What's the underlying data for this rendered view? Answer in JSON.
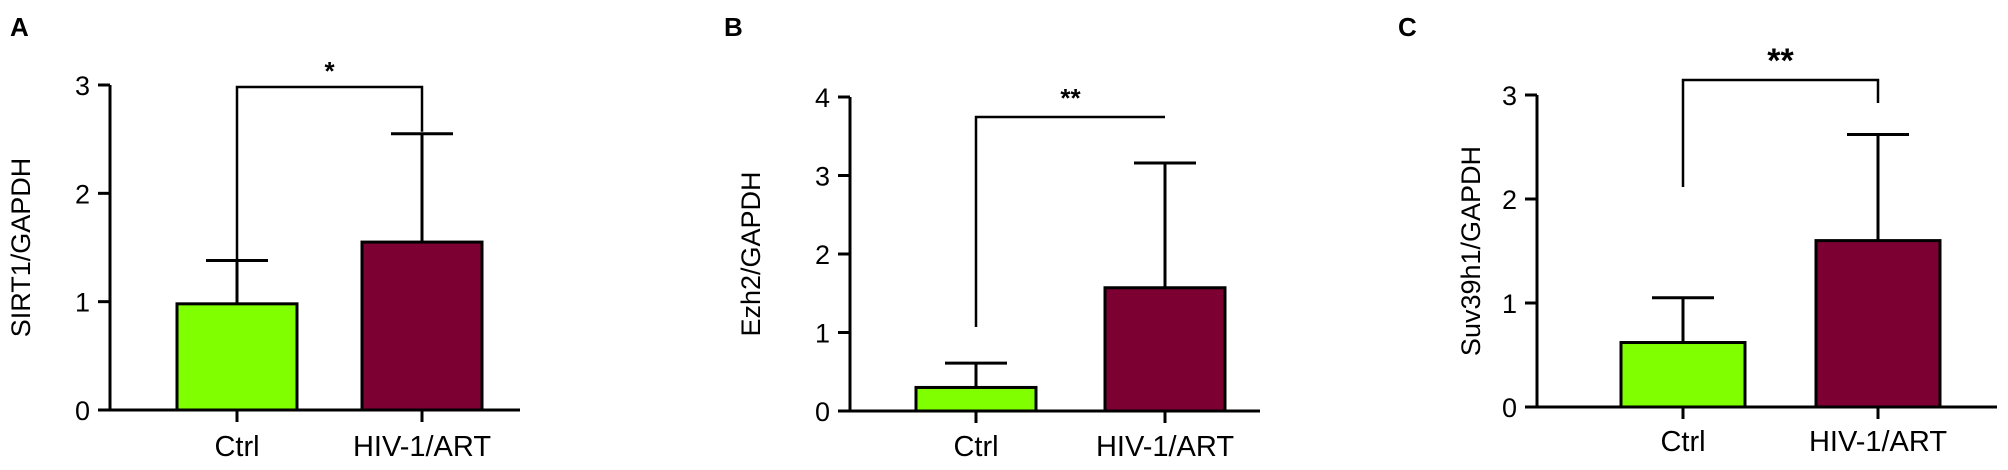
{
  "colors": {
    "ctrl": "#80ff00",
    "hiv": "#7d0033",
    "stroke": "#000000"
  },
  "chart_data": [
    {
      "panel": "A",
      "type": "bar",
      "categories": [
        "Ctrl",
        "HIV-1/ART"
      ],
      "values": [
        0.98,
        1.55
      ],
      "error_upper": [
        1.38,
        2.55
      ],
      "ylabel": "SIRT1/GAPDH",
      "ylim": [
        0,
        3
      ],
      "yticks": [
        "0",
        "1",
        "2",
        "3"
      ],
      "significance": "*"
    },
    {
      "panel": "B",
      "type": "bar",
      "categories": [
        "Ctrl",
        "HIV-1/ART"
      ],
      "values": [
        0.3,
        1.57
      ],
      "error_upper": [
        0.61,
        3.16
      ],
      "ylabel": "Ezh2/GAPDH",
      "ylim": [
        0,
        4
      ],
      "yticks": [
        "0",
        "1",
        "2",
        "3",
        "4"
      ],
      "significance": "**"
    },
    {
      "panel": "C",
      "type": "bar",
      "categories": [
        "Ctrl",
        "HIV-1/ART"
      ],
      "values": [
        0.62,
        1.6
      ],
      "error_upper": [
        1.05,
        2.62
      ],
      "ylabel": "Suv39h1/GAPDH",
      "ylim": [
        0,
        3
      ],
      "yticks": [
        "0",
        "1",
        "2",
        "3"
      ],
      "significance": "**"
    }
  ]
}
